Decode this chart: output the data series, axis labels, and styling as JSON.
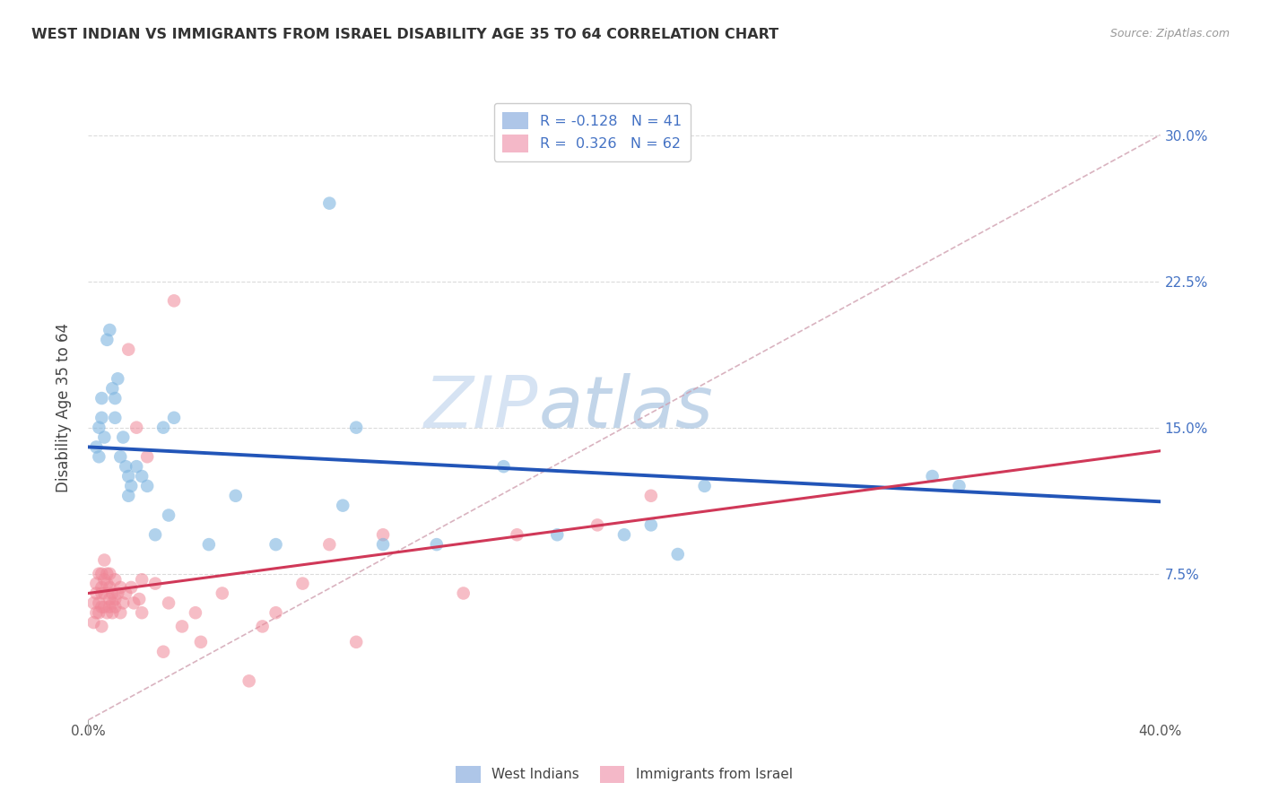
{
  "title": "WEST INDIAN VS IMMIGRANTS FROM ISRAEL DISABILITY AGE 35 TO 64 CORRELATION CHART",
  "source": "Source: ZipAtlas.com",
  "ylabel": "Disability Age 35 to 64",
  "ytick_labels": [
    "7.5%",
    "15.0%",
    "22.5%",
    "30.0%"
  ],
  "ytick_values": [
    0.075,
    0.15,
    0.225,
    0.3
  ],
  "xlim": [
    0.0,
    0.4
  ],
  "ylim": [
    0.0,
    0.32
  ],
  "legend_entries": [
    {
      "label": "R = -0.128   N = 41",
      "color": "#aec6e8"
    },
    {
      "label": "R =  0.326   N = 62",
      "color": "#f4b8c8"
    }
  ],
  "legend_bottom": [
    {
      "label": "West Indians",
      "color": "#aec6e8"
    },
    {
      "label": "Immigrants from Israel",
      "color": "#f4b8c8"
    }
  ],
  "west_indians_x": [
    0.003,
    0.004,
    0.004,
    0.005,
    0.005,
    0.006,
    0.007,
    0.008,
    0.009,
    0.01,
    0.01,
    0.011,
    0.012,
    0.013,
    0.014,
    0.015,
    0.015,
    0.016,
    0.018,
    0.02,
    0.022,
    0.025,
    0.028,
    0.03,
    0.032,
    0.045,
    0.055,
    0.07,
    0.09,
    0.095,
    0.1,
    0.11,
    0.13,
    0.155,
    0.175,
    0.2,
    0.21,
    0.22,
    0.23,
    0.315,
    0.325
  ],
  "west_indians_y": [
    0.14,
    0.15,
    0.135,
    0.155,
    0.165,
    0.145,
    0.195,
    0.2,
    0.17,
    0.155,
    0.165,
    0.175,
    0.135,
    0.145,
    0.13,
    0.125,
    0.115,
    0.12,
    0.13,
    0.125,
    0.12,
    0.095,
    0.15,
    0.105,
    0.155,
    0.09,
    0.115,
    0.09,
    0.265,
    0.11,
    0.15,
    0.09,
    0.09,
    0.13,
    0.095,
    0.095,
    0.1,
    0.085,
    0.12,
    0.125,
    0.12
  ],
  "israel_x": [
    0.002,
    0.002,
    0.003,
    0.003,
    0.003,
    0.004,
    0.004,
    0.004,
    0.005,
    0.005,
    0.005,
    0.005,
    0.005,
    0.006,
    0.006,
    0.006,
    0.006,
    0.007,
    0.007,
    0.007,
    0.008,
    0.008,
    0.008,
    0.008,
    0.009,
    0.009,
    0.009,
    0.01,
    0.01,
    0.01,
    0.011,
    0.012,
    0.012,
    0.013,
    0.014,
    0.015,
    0.016,
    0.017,
    0.018,
    0.019,
    0.02,
    0.02,
    0.022,
    0.025,
    0.028,
    0.03,
    0.032,
    0.035,
    0.04,
    0.042,
    0.05,
    0.06,
    0.065,
    0.07,
    0.08,
    0.09,
    0.1,
    0.11,
    0.14,
    0.16,
    0.19,
    0.21
  ],
  "israel_y": [
    0.06,
    0.05,
    0.065,
    0.055,
    0.07,
    0.06,
    0.075,
    0.055,
    0.075,
    0.065,
    0.058,
    0.048,
    0.068,
    0.065,
    0.072,
    0.058,
    0.082,
    0.055,
    0.07,
    0.075,
    0.062,
    0.058,
    0.068,
    0.075,
    0.06,
    0.055,
    0.065,
    0.062,
    0.058,
    0.072,
    0.065,
    0.068,
    0.055,
    0.06,
    0.065,
    0.19,
    0.068,
    0.06,
    0.15,
    0.062,
    0.055,
    0.072,
    0.135,
    0.07,
    0.035,
    0.06,
    0.215,
    0.048,
    0.055,
    0.04,
    0.065,
    0.02,
    0.048,
    0.055,
    0.07,
    0.09,
    0.04,
    0.095,
    0.065,
    0.095,
    0.1,
    0.115
  ],
  "blue_line_x": [
    0.0,
    0.4
  ],
  "blue_line_y": [
    0.14,
    0.112
  ],
  "pink_line_x": [
    0.0,
    0.4
  ],
  "pink_line_y": [
    0.065,
    0.138
  ],
  "blue_dot_color": "#7eb5e0",
  "pink_dot_color": "#f08898",
  "blue_line_color": "#2255b8",
  "pink_line_color": "#d03858",
  "background_color": "#ffffff",
  "grid_color": "#cccccc"
}
